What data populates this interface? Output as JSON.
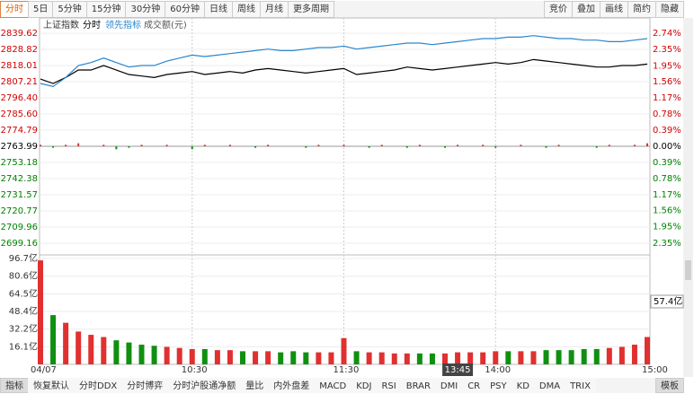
{
  "toolbar": {
    "left": [
      "分时",
      "5日",
      "5分钟",
      "15分钟",
      "30分钟",
      "60分钟",
      "日线",
      "周线",
      "月线",
      "更多周期"
    ],
    "right": [
      "竞价",
      "叠加",
      "画线",
      "简约",
      "隐藏"
    ]
  },
  "tabs": [
    "指标",
    "恢复默认",
    "分时DDX",
    "分时博弈",
    "分时沪股通净额",
    "量比",
    "内外盘差",
    "MACD",
    "KDJ",
    "RSI",
    "BRAR",
    "DMI",
    "CR",
    "PSY",
    "KD",
    "DMA",
    "TRIX",
    "模板"
  ],
  "chart_data": {
    "type": "line",
    "title": "上证指数",
    "categories": [
      "04/07",
      null,
      null,
      null,
      null,
      null,
      null,
      null,
      null,
      null,
      null,
      null,
      "10:30",
      null,
      null,
      null,
      null,
      null,
      null,
      null,
      null,
      null,
      null,
      null,
      "11:30",
      null,
      null,
      null,
      null,
      null,
      null,
      null,
      null,
      "13:45",
      null,
      null,
      "14:00",
      null,
      null,
      null,
      null,
      null,
      null,
      null,
      null,
      null,
      null,
      null,
      "15:00"
    ],
    "cursor_index": 33,
    "series": [
      {
        "name": "分时",
        "color": "#000000",
        "values": [
          2809,
          2806,
          2810,
          2815,
          2815,
          2818,
          2815,
          2812,
          2811,
          2810,
          2812,
          2813,
          2814,
          2812,
          2813,
          2814,
          2813,
          2815,
          2816,
          2815,
          2814,
          2813,
          2814,
          2815,
          2816,
          2812,
          2813,
          2814,
          2815,
          2817,
          2816,
          2815,
          2816,
          2817,
          2818,
          2819,
          2820,
          2819,
          2820,
          2822,
          2821,
          2820,
          2819,
          2818,
          2817,
          2817,
          2818,
          2818,
          2819
        ]
      },
      {
        "name": "领先指标",
        "color": "#2a86cc",
        "values": [
          2806,
          2804,
          2810,
          2818,
          2820,
          2823,
          2820,
          2817,
          2818,
          2818,
          2821,
          2823,
          2825,
          2824,
          2825,
          2826,
          2827,
          2828,
          2829,
          2828,
          2828,
          2829,
          2830,
          2830,
          2831,
          2829,
          2830,
          2831,
          2832,
          2833,
          2833,
          2832,
          2833,
          2834,
          2835,
          2836,
          2836,
          2837,
          2837,
          2838,
          2837,
          2836,
          2836,
          2835,
          2835,
          2834,
          2834,
          2835,
          2836
        ]
      }
    ],
    "breadth": {
      "base": 2763.99,
      "up_color": "#e03030",
      "down_color": "#109010",
      "values": [
        2765,
        2763,
        2765,
        2766,
        2764,
        2765,
        2762,
        2763,
        2765,
        2764,
        2765,
        2764,
        2762,
        2765,
        2764,
        2765,
        2764,
        2763,
        2765,
        2764,
        2764,
        2763,
        2765,
        2764,
        2765,
        2764,
        2763,
        2765,
        2764,
        2763,
        2765,
        2764,
        2763,
        2765,
        2764,
        2765,
        2763,
        2764,
        2765,
        2764,
        2763,
        2765,
        2764,
        2764,
        2763,
        2765,
        2764,
        2765,
        2766
      ]
    },
    "ylim": [
      2694.96,
      2843.82
    ],
    "yticks": [
      2839.62,
      2828.82,
      2818.01,
      2807.21,
      {
        "value": 2796.4,
        "label": "2796.40"
      },
      {
        "value": 2785.6,
        "label": "2785.60"
      },
      2774.79,
      2763.99,
      2753.18,
      2742.38,
      2731.57,
      2720.77,
      2709.96,
      2699.16
    ],
    "y2lim": [
      -2.5,
      2.89
    ],
    "y2ticks": [
      {
        "value": 2.74,
        "label": "2.74%"
      },
      {
        "value": 2.35,
        "label": "2.35%"
      },
      {
        "value": 1.95,
        "label": "1.95%"
      },
      {
        "value": 1.56,
        "label": "1.56%"
      },
      {
        "value": 1.17,
        "label": "1.17%"
      },
      {
        "value": 0.78,
        "label": "0.78%"
      },
      {
        "value": 0.39,
        "label": "0.39%"
      },
      {
        "value": 0,
        "label": "0.00%"
      },
      {
        "value": -0.39,
        "label": "0.39%"
      },
      {
        "value": -0.78,
        "label": "0.78%"
      },
      {
        "value": -1.17,
        "label": "1.17%"
      },
      {
        "value": -1.56,
        "label": "1.56%"
      },
      {
        "value": -1.95,
        "label": "1.95%"
      },
      {
        "value": -2.35,
        "label": "2.35%"
      }
    ],
    "grid": true,
    "volume": {
      "name": "成交额(元)",
      "up_color": "#e03030",
      "down_color": "#109010",
      "values": [
        95,
        45,
        38,
        30,
        27,
        25,
        22,
        20,
        18,
        17,
        16,
        15,
        14,
        14,
        13,
        13,
        12,
        12,
        12,
        11,
        12,
        11,
        11,
        11,
        24,
        12,
        11,
        11,
        10,
        10,
        10,
        10,
        10,
        11,
        11,
        11,
        12,
        12,
        12,
        12,
        13,
        13,
        13,
        14,
        14,
        15,
        16,
        18,
        25
      ],
      "ylim": [
        0,
        99.2
      ],
      "yticks": [
        {
          "value": 96.7,
          "label": "96.7亿"
        },
        {
          "value": 80.6,
          "label": "80.6亿"
        },
        {
          "value": 64.5,
          "label": "64.5亿"
        },
        {
          "value": 48.4,
          "label": "48.4亿"
        },
        {
          "value": 32.2,
          "label": "32.2亿"
        },
        {
          "value": 16.1,
          "label": "16.1亿"
        }
      ],
      "cursor": {
        "value": 57.4,
        "label": "57.4亿"
      }
    }
  }
}
